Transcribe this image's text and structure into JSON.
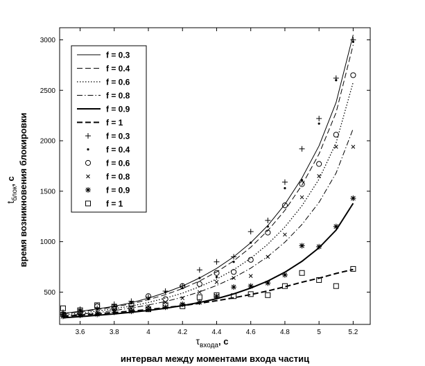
{
  "chart_data": {
    "type": "line",
    "xlim": [
      3.48,
      5.3
    ],
    "ylim": [
      180,
      3120
    ],
    "x_ticks": [
      3.6,
      3.8,
      4,
      4.2,
      4.4,
      4.6,
      4.8,
      5,
      5.2
    ],
    "y_ticks": [
      500,
      1000,
      1500,
      2000,
      2500,
      3000
    ],
    "x_tick_labels": [
      "3.6",
      "3.8",
      "4",
      "4.2",
      "4.4",
      "4.6",
      "4.8",
      "5",
      "5.2"
    ],
    "y_tick_labels": [
      "500",
      "1000",
      "1500",
      "2000",
      "2500",
      "3000"
    ],
    "xlabel": {
      "symbol": "τ",
      "subscript": "входа",
      "unit": ", c",
      "description": "интервал между моментами входа частиц"
    },
    "ylabel": {
      "symbol": "t",
      "subscript": "блок",
      "unit": ", c",
      "description": "время возникновения блокировки"
    },
    "legend_position": "top-left",
    "curve_x": [
      3.5,
      3.6,
      3.7,
      3.8,
      3.9,
      4.0,
      4.1,
      4.2,
      4.3,
      4.4,
      4.5,
      4.6,
      4.7,
      4.8,
      4.9,
      5.0,
      5.1,
      5.2
    ],
    "curves": [
      {
        "name": "f = 0.3",
        "style": "thin-solid",
        "y": [
          290,
          310,
          333,
          360,
          395,
          440,
          495,
          560,
          640,
          735,
          850,
          990,
          1160,
          1370,
          1630,
          1950,
          2380,
          3050
        ]
      },
      {
        "name": "f = 0.4",
        "style": "dashed",
        "y": [
          285,
          305,
          327,
          352,
          385,
          425,
          475,
          535,
          610,
          700,
          810,
          945,
          1110,
          1310,
          1560,
          1870,
          2280,
          2950
        ]
      },
      {
        "name": "f = 0.6",
        "style": "dotted",
        "y": [
          275,
          292,
          312,
          335,
          362,
          397,
          440,
          490,
          553,
          630,
          722,
          835,
          975,
          1145,
          1355,
          1620,
          1980,
          2580
        ]
      },
      {
        "name": "f = 0.8",
        "style": "dash-dot",
        "y": [
          265,
          280,
          297,
          318,
          342,
          372,
          407,
          450,
          502,
          566,
          643,
          738,
          853,
          995,
          1170,
          1390,
          1680,
          2120
        ]
      },
      {
        "name": "f = 0.9",
        "style": "thick-solid",
        "y": [
          245,
          257,
          270,
          284,
          300,
          318,
          340,
          366,
          397,
          435,
          482,
          540,
          610,
          697,
          805,
          940,
          1115,
          1380
        ]
      },
      {
        "name": "f = 1",
        "style": "thick-dashed",
        "y": [
          260,
          272,
          285,
          298,
          312,
          328,
          346,
          366,
          389,
          415,
          444,
          476,
          512,
          553,
          598,
          638,
          685,
          725
        ]
      }
    ],
    "points_x": [
      3.5,
      3.6,
      3.7,
      3.8,
      3.9,
      4.0,
      4.1,
      4.2,
      4.3,
      4.4,
      4.5,
      4.6,
      4.7,
      4.8,
      4.9,
      5.0,
      5.1,
      5.2
    ],
    "points": [
      {
        "name": "f = 0.3",
        "marker": "plus",
        "y": [
          300,
          330,
          340,
          380,
          410,
          450,
          510,
          560,
          720,
          800,
          850,
          1100,
          1210,
          1590,
          1920,
          2220,
          2620,
          3000
        ]
      },
      {
        "name": "f = 0.4",
        "marker": "dot",
        "y": [
          290,
          320,
          330,
          360,
          390,
          430,
          500,
          540,
          640,
          650,
          800,
          990,
          1150,
          1530,
          1610,
          2170,
          2600,
          2980
        ]
      },
      {
        "name": "f = 0.6",
        "marker": "circle",
        "y": [
          280,
          300,
          360,
          340,
          380,
          460,
          430,
          560,
          580,
          690,
          700,
          820,
          1090,
          1360,
          1570,
          1770,
          2060,
          2650
        ]
      },
      {
        "name": "f = 0.8",
        "marker": "cross",
        "y": [
          270,
          290,
          300,
          330,
          340,
          360,
          400,
          440,
          500,
          600,
          640,
          660,
          850,
          1070,
          1440,
          1650,
          1940,
          1940
        ]
      },
      {
        "name": "f = 0.9",
        "marker": "star",
        "y": [
          260,
          270,
          280,
          300,
          310,
          330,
          350,
          380,
          400,
          460,
          550,
          560,
          590,
          670,
          960,
          950,
          1150,
          1430
        ]
      },
      {
        "name": "f = 1",
        "marker": "square",
        "y": [
          340,
          320,
          370,
          350,
          340,
          330,
          370,
          360,
          450,
          470,
          460,
          480,
          470,
          560,
          690,
          620,
          560,
          730
        ]
      }
    ]
  }
}
